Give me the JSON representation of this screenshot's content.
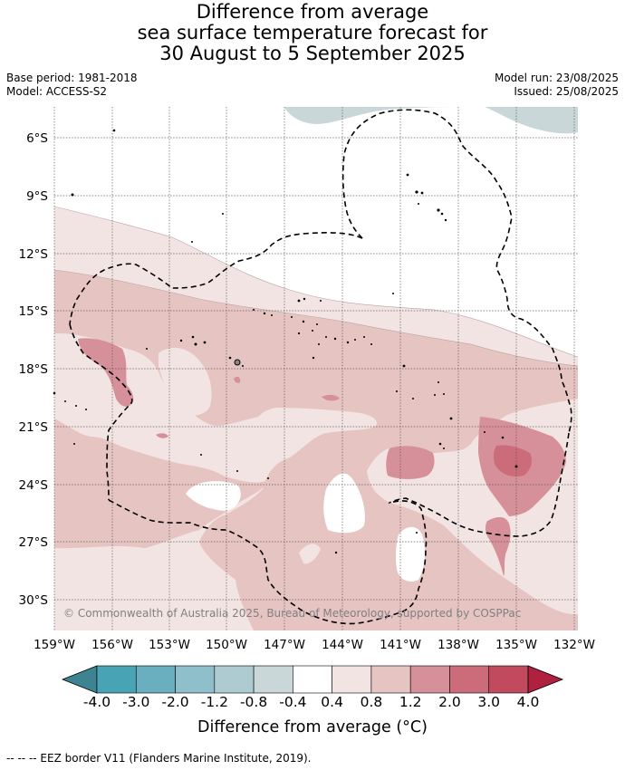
{
  "title": {
    "line1": "Difference from average",
    "line2": "sea surface temperature forecast for",
    "line3": "30 August to 5 September 2025"
  },
  "meta": {
    "base_period": "Base period: 1981-2018",
    "model": "Model: ACCESS-S2",
    "model_run": "Model run: 23/08/2025",
    "issued": "Issued: 25/08/2025"
  },
  "map": {
    "lon_labels": [
      "159°W",
      "156°W",
      "153°W",
      "150°W",
      "147°W",
      "144°W",
      "141°W",
      "138°W",
      "135°W",
      "132°W"
    ],
    "lat_labels": [
      "6°S",
      "9°S",
      "12°S",
      "15°S",
      "18°S",
      "21°S",
      "24°S",
      "27°S",
      "30°S"
    ],
    "copyright": "© Commonwealth of Australia 2025, Bureau of Meteorology, supported by COSPPac",
    "colors": {
      "cool_0.4_0.8": "#c9d7d8",
      "neutral": "#ffffff",
      "warm_0.4_0.8": "#f3e4e4",
      "warm_0.8_1.2": "#e6c4c2",
      "warm_1.2_2.0": "#d6909a",
      "warm_2.0_3.0": "#cc6b79"
    }
  },
  "colorbar": {
    "tick_labels": [
      "-4.0",
      "-3.0",
      "-2.0",
      "-1.2",
      "-0.8",
      "-0.4",
      "0.4",
      "0.8",
      "1.2",
      "2.0",
      "3.0",
      "4.0"
    ],
    "segment_colors": [
      "#3e8391",
      "#48a4b5",
      "#6aafbf",
      "#8fbfca",
      "#adcbd0",
      "#c9d7d8",
      "#ffffff",
      "#f3e4e4",
      "#e6c4c2",
      "#d6909a",
      "#cc6b79",
      "#c24a5e",
      "#b0203f"
    ],
    "label": "Difference from average (°C)"
  },
  "footer": "-- -- -- EEZ border V11 (Flanders Marine Institute, 2019)."
}
